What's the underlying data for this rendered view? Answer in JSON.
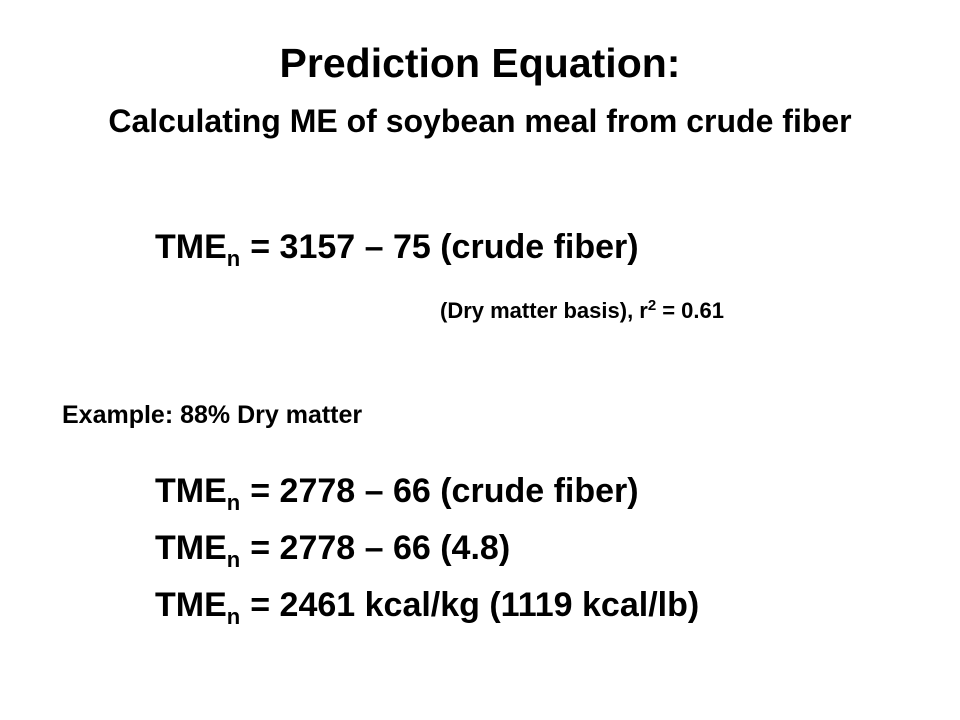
{
  "title": "Prediction Equation:",
  "subtitle": "Calculating ME of soybean meal from crude fiber",
  "equation": {
    "lhs": "TME",
    "sub": "n",
    "rhs": "= 3157 – 75 (crude fiber)"
  },
  "note": {
    "text": "(Dry matter basis), r",
    "sup": "2",
    "rest": "= 0.61"
  },
  "example": {
    "label": "Example: 88% Dry matter",
    "lines": [
      {
        "lhs": "TME",
        "sub": "n",
        "rhs": "= 2778 – 66 (crude fiber)"
      },
      {
        "lhs": "TME",
        "sub": "n",
        "rhs": "= 2778 – 66 (4.8)"
      },
      {
        "lhs": "TME",
        "sub": "n",
        "rhs": "= 2461 kcal/kg (1119 kcal/lb)"
      }
    ]
  }
}
